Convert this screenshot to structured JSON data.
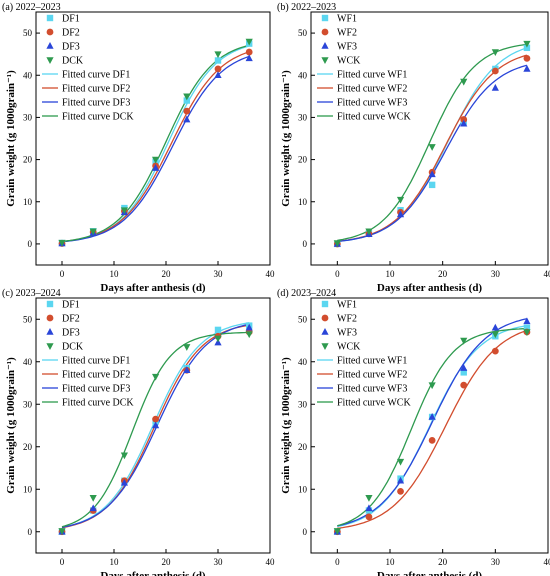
{
  "figure": {
    "colors": {
      "s1": "#5bd6f0",
      "s2": "#d24d2e",
      "s3": "#2a45d8",
      "s4": "#2e9a4f",
      "axis": "#000000"
    },
    "panels": [
      {
        "panel_label": "(a) 2022–2023",
        "xlabel": "Days after anthesis (d)",
        "ylabel": "Grain weight (g 1000grain⁻¹)",
        "xlim": [
          -5,
          40
        ],
        "ylim": [
          -5,
          55
        ],
        "xticks": [
          0,
          10,
          20,
          30,
          40
        ],
        "yticks": [
          0,
          10,
          20,
          30,
          40,
          50
        ],
        "legend_position": "top-left",
        "legend": [
          "DF1",
          "DF2",
          "DF3",
          "DCK",
          "Fitted curve DF1",
          "Fitted curve DF2",
          "Fitted curve DF3",
          "Fitted curve DCK"
        ]
      },
      {
        "panel_label": "(b) 2022–2023",
        "xlabel": "Days after anthesis (d)",
        "ylabel": "Grain weight (g 1000grain⁻¹)",
        "xlim": [
          -5,
          40
        ],
        "ylim": [
          -5,
          55
        ],
        "xticks": [
          0,
          10,
          20,
          30,
          40
        ],
        "yticks": [
          0,
          10,
          20,
          30,
          40,
          50
        ],
        "legend_position": "top-left",
        "legend": [
          "WF1",
          "WF2",
          "WF3",
          "WCK",
          "Fitted curve WF1",
          "Fitted curve WF2",
          "Fitted curve WF3",
          "Fitted curve WCK"
        ]
      },
      {
        "panel_label": "(c) 2023–2024",
        "xlabel": "Days after anthesis (d)",
        "ylabel": "Grain weight (g 1000grain⁻¹)",
        "xlim": [
          -5,
          40
        ],
        "ylim": [
          -5,
          55
        ],
        "xticks": [
          0,
          10,
          20,
          30,
          40
        ],
        "yticks": [
          0,
          10,
          20,
          30,
          40,
          50
        ],
        "legend_position": "top-left",
        "legend": [
          "DF1",
          "DF2",
          "DF3",
          "DCK",
          "Fitted curve DF1",
          "Fitted curve DF2",
          "Fitted curve DF3",
          "Fitted curve DCK"
        ]
      },
      {
        "panel_label": "(d) 2023–2024",
        "xlabel": "Days after anthesis (d)",
        "ylabel": "Grain weight (g 1000grain⁻¹)",
        "xlim": [
          -5,
          40
        ],
        "ylim": [
          -5,
          55
        ],
        "xticks": [
          0,
          10,
          20,
          30,
          40
        ],
        "yticks": [
          0,
          10,
          20,
          30,
          40,
          50
        ],
        "legend_position": "top-left",
        "legend": [
          "WF1",
          "WF2",
          "WF3",
          "WCK",
          "Fitted curve WF1",
          "Fitted curve WF2",
          "Fitted curve WF3",
          "Fitted curve WCK"
        ]
      }
    ]
  },
  "chart_data": [
    {
      "type": "scatter",
      "title": "(a) 2022–2023",
      "xlabel": "Days after anthesis (d)",
      "ylabel": "Grain weight (g 1000grain⁻¹)",
      "xlim": [
        -5,
        40
      ],
      "ylim": [
        -5,
        55
      ],
      "grid": false,
      "x": [
        0,
        6,
        12,
        18,
        24,
        30,
        36
      ],
      "series": [
        {
          "name": "DF1",
          "marker": "square",
          "values": [
            0.2,
            3.0,
            8.5,
            19.5,
            34.0,
            43.5,
            47.5
          ]
        },
        {
          "name": "DF2",
          "marker": "circle",
          "values": [
            0.1,
            2.8,
            7.8,
            18.5,
            31.5,
            41.5,
            45.5
          ]
        },
        {
          "name": "DF3",
          "marker": "triangle-up",
          "values": [
            0.1,
            2.6,
            7.5,
            18.0,
            29.5,
            40.0,
            44.0
          ]
        },
        {
          "name": "DCK",
          "marker": "triangle-down",
          "values": [
            0.3,
            3.0,
            8.0,
            20.0,
            35.0,
            45.0,
            48.0
          ]
        }
      ],
      "fitted_curves": [
        {
          "name": "Fitted curve DF1",
          "a": 48.5,
          "k": 0.22,
          "x0": 20.5
        },
        {
          "name": "Fitted curve DF2",
          "a": 47.5,
          "k": 0.21,
          "x0": 21.0
        },
        {
          "name": "Fitted curve DF3",
          "a": 46.5,
          "k": 0.21,
          "x0": 21.3
        },
        {
          "name": "Fitted curve DCK",
          "a": 48.5,
          "k": 0.22,
          "x0": 20.0
        }
      ]
    },
    {
      "type": "scatter",
      "title": "(b) 2022–2023",
      "xlabel": "Days after anthesis (d)",
      "ylabel": "Grain weight (g 1000grain⁻¹)",
      "xlim": [
        -5,
        40
      ],
      "ylim": [
        -5,
        55
      ],
      "grid": false,
      "x": [
        0,
        6,
        12,
        18,
        24,
        30,
        36
      ],
      "series": [
        {
          "name": "WF1",
          "marker": "square",
          "values": [
            0.0,
            2.5,
            8.0,
            14.0,
            29.0,
            41.5,
            46.5
          ]
        },
        {
          "name": "WF2",
          "marker": "circle",
          "values": [
            0.0,
            2.4,
            7.5,
            17.0,
            29.5,
            41.0,
            44.0
          ]
        },
        {
          "name": "WF3",
          "marker": "triangle-up",
          "values": [
            0.0,
            2.3,
            7.0,
            16.5,
            28.5,
            37.0,
            41.5
          ]
        },
        {
          "name": "WCK",
          "marker": "triangle-down",
          "values": [
            0.2,
            3.0,
            10.5,
            23.0,
            38.5,
            45.5,
            47.5
          ]
        }
      ],
      "fitted_curves": [
        {
          "name": "Fitted curve WF1",
          "a": 48.5,
          "k": 0.21,
          "x0": 21.0
        },
        {
          "name": "Fitted curve WF2",
          "a": 46.5,
          "k": 0.21,
          "x0": 20.5
        },
        {
          "name": "Fitted curve WF3",
          "a": 44.0,
          "k": 0.21,
          "x0": 20.5
        },
        {
          "name": "Fitted curve WCK",
          "a": 48.0,
          "k": 0.23,
          "x0": 17.5
        }
      ]
    },
    {
      "type": "scatter",
      "title": "(c) 2023–2024",
      "xlabel": "Days after anthesis (d)",
      "ylabel": "Grain weight (g 1000grain⁻¹)",
      "xlim": [
        -5,
        40
      ],
      "ylim": [
        -5,
        55
      ],
      "grid": false,
      "x": [
        0,
        6,
        12,
        18,
        24,
        30,
        36
      ],
      "series": [
        {
          "name": "DF1",
          "marker": "square",
          "values": [
            0.0,
            5.0,
            12.0,
            26.0,
            38.5,
            47.5,
            48.5
          ]
        },
        {
          "name": "DF2",
          "marker": "circle",
          "values": [
            0.0,
            5.0,
            12.0,
            26.5,
            38.0,
            46.0,
            47.0
          ]
        },
        {
          "name": "DF3",
          "marker": "triangle-up",
          "values": [
            0.0,
            5.5,
            11.5,
            25.0,
            38.0,
            44.5,
            48.0
          ]
        },
        {
          "name": "DCK",
          "marker": "triangle-down",
          "values": [
            0.2,
            8.0,
            18.0,
            36.5,
            43.5,
            45.5,
            46.5
          ]
        }
      ],
      "fitted_curves": [
        {
          "name": "Fitted curve DF1",
          "a": 50.0,
          "k": 0.22,
          "x0": 17.5
        },
        {
          "name": "Fitted curve DF2",
          "a": 49.5,
          "k": 0.22,
          "x0": 17.8
        },
        {
          "name": "Fitted curve DF3",
          "a": 50.0,
          "k": 0.21,
          "x0": 18.3
        },
        {
          "name": "Fitted curve DCK",
          "a": 47.0,
          "k": 0.27,
          "x0": 13.5
        }
      ]
    },
    {
      "type": "scatter",
      "title": "(d) 2023–2024",
      "xlabel": "Days after anthesis (d)",
      "ylabel": "Grain weight (g 1000grain⁻¹)",
      "xlim": [
        -5,
        40
      ],
      "ylim": [
        -5,
        55
      ],
      "grid": false,
      "x": [
        0,
        6,
        12,
        18,
        24,
        30,
        36
      ],
      "series": [
        {
          "name": "WF1",
          "marker": "square",
          "values": [
            0.0,
            5.0,
            12.5,
            27.0,
            37.5,
            46.0,
            48.0
          ]
        },
        {
          "name": "WF2",
          "marker": "circle",
          "values": [
            0.0,
            3.5,
            9.5,
            21.5,
            34.5,
            42.5,
            47.0
          ]
        },
        {
          "name": "WF3",
          "marker": "triangle-up",
          "values": [
            0.0,
            5.5,
            12.0,
            27.0,
            38.5,
            48.0,
            49.5
          ]
        },
        {
          "name": "WCK",
          "marker": "triangle-down",
          "values": [
            0.2,
            8.0,
            16.5,
            34.5,
            45.0,
            46.5,
            47.0
          ]
        }
      ],
      "fitted_curves": [
        {
          "name": "Fitted curve WF1",
          "a": 49.5,
          "k": 0.21,
          "x0": 17.5
        },
        {
          "name": "Fitted curve WF2",
          "a": 49.5,
          "k": 0.2,
          "x0": 20.5
        },
        {
          "name": "Fitted curve WF3",
          "a": 51.5,
          "k": 0.2,
          "x0": 18.0
        },
        {
          "name": "Fitted curve WCK",
          "a": 48.0,
          "k": 0.25,
          "x0": 14.0
        }
      ]
    }
  ]
}
